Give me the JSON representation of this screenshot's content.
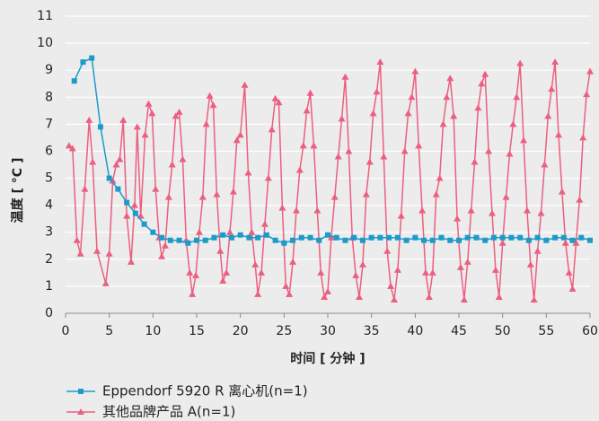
{
  "chart_data": {
    "type": "line",
    "x_label": "时间 [ 分钟 ]",
    "y_label": "温度 [ °C ]",
    "xlim": [
      0,
      60
    ],
    "ylim": [
      0,
      11
    ],
    "xticks": [
      0,
      5,
      10,
      15,
      20,
      25,
      30,
      35,
      40,
      45,
      50,
      55,
      60
    ],
    "yticks": [
      0,
      1,
      2,
      3,
      4,
      5,
      6,
      7,
      8,
      9,
      10,
      11
    ],
    "grid": true,
    "legend": "bottom-left",
    "series": [
      {
        "name": "Eppendorf 5920 R 离心机(n=1)",
        "color": "#1c9bc8",
        "marker": "square",
        "x": [
          1,
          2,
          3,
          4,
          5,
          6,
          7,
          8,
          9,
          10,
          11,
          12,
          13,
          14,
          15,
          16,
          17,
          18,
          19,
          20,
          21,
          22,
          23,
          24,
          25,
          26,
          27,
          28,
          29,
          30,
          31,
          32,
          33,
          34,
          35,
          36,
          37,
          38,
          39,
          40,
          41,
          42,
          43,
          44,
          45,
          46,
          47,
          48,
          49,
          50,
          51,
          52,
          53,
          54,
          55,
          56,
          57,
          58,
          59,
          60
        ],
        "values": [
          8.6,
          9.3,
          9.45,
          6.9,
          5.0,
          4.6,
          4.1,
          3.7,
          3.3,
          3.0,
          2.8,
          2.7,
          2.7,
          2.6,
          2.7,
          2.7,
          2.8,
          2.9,
          2.8,
          2.9,
          2.8,
          2.8,
          2.9,
          2.7,
          2.6,
          2.7,
          2.8,
          2.8,
          2.7,
          2.9,
          2.8,
          2.7,
          2.8,
          2.7,
          2.8,
          2.8,
          2.8,
          2.8,
          2.7,
          2.8,
          2.7,
          2.7,
          2.8,
          2.7,
          2.7,
          2.8,
          2.8,
          2.7,
          2.8,
          2.8,
          2.8,
          2.8,
          2.7,
          2.8,
          2.7,
          2.8,
          2.8,
          2.7,
          2.8,
          2.7
        ]
      },
      {
        "name": "其他品牌产品 A(n=1)",
        "color": "#ec5f80",
        "marker": "triangle",
        "x": [
          0.4,
          0.8,
          1.3,
          1.7,
          2.2,
          2.7,
          3.1,
          3.6,
          4.6,
          5.0,
          5.4,
          5.8,
          6.2,
          6.6,
          7.0,
          7.5,
          7.9,
          8.2,
          8.6,
          9.1,
          9.5,
          9.9,
          10.3,
          10.7,
          11.0,
          11.4,
          11.8,
          12.2,
          12.6,
          13.0,
          13.4,
          13.8,
          14.2,
          14.5,
          14.9,
          15.3,
          15.7,
          16.1,
          16.5,
          16.9,
          17.3,
          17.7,
          18.0,
          18.4,
          18.8,
          19.2,
          19.6,
          20.0,
          20.5,
          20.9,
          21.3,
          21.7,
          22.0,
          22.4,
          22.8,
          23.2,
          23.6,
          24.0,
          24.4,
          24.8,
          25.2,
          25.6,
          26.0,
          26.4,
          26.8,
          27.2,
          27.6,
          28.0,
          28.4,
          28.8,
          29.2,
          29.6,
          30.0,
          30.4,
          30.8,
          31.2,
          31.6,
          32.0,
          32.4,
          32.8,
          33.2,
          33.6,
          34.0,
          34.4,
          34.8,
          35.2,
          35.6,
          36.0,
          36.4,
          36.8,
          37.2,
          37.6,
          38.0,
          38.4,
          38.8,
          39.2,
          39.6,
          40.0,
          40.4,
          40.8,
          41.2,
          41.6,
          42.0,
          42.4,
          42.8,
          43.2,
          43.6,
          44.0,
          44.4,
          44.8,
          45.2,
          45.6,
          46.0,
          46.4,
          46.8,
          47.2,
          47.6,
          48.0,
          48.4,
          48.8,
          49.2,
          49.6,
          50.0,
          50.4,
          50.8,
          51.2,
          51.6,
          52.0,
          52.4,
          52.8,
          53.2,
          53.6,
          54.0,
          54.4,
          54.8,
          55.2,
          55.6,
          56.0,
          56.4,
          56.8,
          57.2,
          57.6,
          58.0,
          58.4,
          58.8,
          59.2,
          59.6,
          60.0
        ],
        "values": [
          6.2,
          6.1,
          2.7,
          2.2,
          4.6,
          7.15,
          5.6,
          2.3,
          1.1,
          2.2,
          4.9,
          5.5,
          5.7,
          7.15,
          3.6,
          1.9,
          4.0,
          6.9,
          3.6,
          6.6,
          7.75,
          7.4,
          4.6,
          2.8,
          2.1,
          2.5,
          4.3,
          5.5,
          7.3,
          7.45,
          5.7,
          2.7,
          1.5,
          0.7,
          1.4,
          3.0,
          4.3,
          7.0,
          8.05,
          7.7,
          4.4,
          2.3,
          1.2,
          1.5,
          3.0,
          4.5,
          6.4,
          6.6,
          8.45,
          5.2,
          3.0,
          1.8,
          0.7,
          1.5,
          3.3,
          5.0,
          6.8,
          7.95,
          7.8,
          3.9,
          1.0,
          0.7,
          1.9,
          3.8,
          5.3,
          6.2,
          7.5,
          8.15,
          6.2,
          3.8,
          1.5,
          0.6,
          0.8,
          2.8,
          4.3,
          5.8,
          7.2,
          8.75,
          6.0,
          2.8,
          1.4,
          0.6,
          1.8,
          4.4,
          5.6,
          7.4,
          8.2,
          9.3,
          5.8,
          2.3,
          1.0,
          0.5,
          1.6,
          3.6,
          6.0,
          7.4,
          8.0,
          8.95,
          6.2,
          3.8,
          1.5,
          0.6,
          1.5,
          4.4,
          5.0,
          7.0,
          8.0,
          8.7,
          7.3,
          3.5,
          1.7,
          0.5,
          1.9,
          3.8,
          5.6,
          7.6,
          8.5,
          8.85,
          6.0,
          3.7,
          1.6,
          0.6,
          2.6,
          4.3,
          5.9,
          7.0,
          8.0,
          9.25,
          6.4,
          3.8,
          1.8,
          0.5,
          2.3,
          3.7,
          5.5,
          7.3,
          8.3,
          9.3,
          6.6,
          4.5,
          2.6,
          1.5,
          0.9,
          2.6,
          4.2,
          6.5,
          8.1,
          8.95
        ]
      }
    ]
  }
}
